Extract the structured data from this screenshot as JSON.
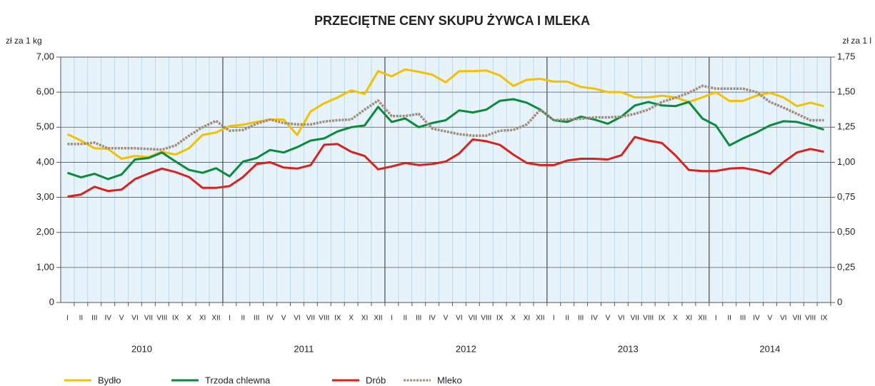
{
  "chart_data": {
    "type": "line",
    "title": "PRZECIĘTNE  CENY  SKUPU  ŻYWCA  I  MLEKA",
    "y_label": "zł za 1 kg",
    "y2_label": "zł za 1 l",
    "categories": [
      "I",
      "II",
      "III",
      "IV",
      "V",
      "VI",
      "VII",
      "VIII",
      "IX",
      "X",
      "XI",
      "XII",
      "I",
      "II",
      "III",
      "IV",
      "V",
      "VI",
      "VII",
      "VIII",
      "IX",
      "X",
      "XI",
      "XII",
      "I",
      "II",
      "III",
      "IV",
      "V",
      "VI",
      "VII",
      "VIII",
      "IX",
      "X",
      "XI",
      "XII",
      "I",
      "II",
      "III",
      "IV",
      "V",
      "VI",
      "VII",
      "VIII",
      "IX",
      "X",
      "XI",
      "XII",
      "I",
      "II",
      "III",
      "IV",
      "V",
      "VI",
      "VII",
      "VIII",
      "IX"
    ],
    "years": [
      "2010",
      "2011",
      "2012",
      "2013",
      "2014"
    ],
    "ylim": [
      0,
      7
    ],
    "yticks": [
      {
        "value": 0,
        "label": "0"
      },
      {
        "value": 1,
        "label": "1,00"
      },
      {
        "value": 2,
        "label": "2,00"
      },
      {
        "value": 3,
        "label": "3,00"
      },
      {
        "value": 4,
        "label": "4,00"
      },
      {
        "value": 5,
        "label": "5,00"
      },
      {
        "value": 6,
        "label": "6,00"
      },
      {
        "value": 7,
        "label": "7,00"
      }
    ],
    "y2lim": [
      0,
      1.75
    ],
    "y2ticks": [
      0,
      {
        "value": 0.25,
        "label": "0,25"
      },
      {
        "value": 0.5,
        "label": "0,50"
      },
      {
        "value": 0.75,
        "label": "0,75"
      },
      {
        "value": 1,
        "label": "1,00"
      },
      {
        "value": 1.25,
        "label": "1,25"
      },
      {
        "value": 1.5,
        "label": "1,50"
      },
      {
        "value": 1.75,
        "label": "1,75"
      }
    ],
    "grid": true,
    "series": [
      {
        "name": "Bydło",
        "color": "#f5c000",
        "values": [
          4.8,
          4.62,
          4.4,
          4.38,
          4.1,
          4.18,
          4.15,
          4.3,
          4.22,
          4.4,
          4.78,
          4.85,
          5.03,
          5.07,
          5.15,
          5.22,
          5.22,
          4.78,
          5.45,
          5.68,
          5.85,
          6.05,
          5.95,
          6.6,
          6.45,
          6.65,
          6.58,
          6.5,
          6.28,
          6.6,
          6.6,
          6.62,
          6.48,
          6.18,
          6.35,
          6.38,
          6.3,
          6.3,
          6.15,
          6.1,
          6.0,
          6.0,
          5.85,
          5.85,
          5.9,
          5.85,
          5.72,
          5.85,
          6.0,
          5.75,
          5.75,
          5.9,
          5.98,
          5.85,
          5.6,
          5.7,
          5.6
        ]
      },
      {
        "name": "Trzoda chlewna",
        "color": "#0a8a3a",
        "values": [
          3.7,
          3.57,
          3.67,
          3.52,
          3.65,
          4.08,
          4.12,
          4.28,
          4.02,
          3.78,
          3.7,
          3.83,
          3.6,
          4.02,
          4.12,
          4.35,
          4.28,
          4.43,
          4.62,
          4.68,
          4.88,
          5.0,
          5.05,
          5.58,
          5.15,
          5.25,
          5.0,
          5.12,
          5.2,
          5.48,
          5.42,
          5.5,
          5.75,
          5.8,
          5.7,
          5.5,
          5.2,
          5.15,
          5.3,
          5.22,
          5.1,
          5.3,
          5.62,
          5.72,
          5.62,
          5.6,
          5.72,
          5.25,
          5.05,
          4.48,
          4.68,
          4.85,
          5.05,
          5.17,
          5.15,
          5.05,
          4.93
        ]
      },
      {
        "name": "Drób",
        "color": "#d9221e",
        "values": [
          3.02,
          3.08,
          3.3,
          3.18,
          3.22,
          3.52,
          3.68,
          3.82,
          3.72,
          3.58,
          3.27,
          3.27,
          3.32,
          3.58,
          3.95,
          4.0,
          3.85,
          3.82,
          3.92,
          4.5,
          4.52,
          4.3,
          4.18,
          3.8,
          3.88,
          3.98,
          3.92,
          3.95,
          4.02,
          4.25,
          4.65,
          4.6,
          4.5,
          4.22,
          3.98,
          3.92,
          3.92,
          4.05,
          4.1,
          4.1,
          4.08,
          4.2,
          4.72,
          4.62,
          4.55,
          4.2,
          3.78,
          3.75,
          3.75,
          3.82,
          3.84,
          3.77,
          3.67,
          4.0,
          4.28,
          4.38,
          4.3
        ]
      },
      {
        "name": "Mleko",
        "color": "#a08c78",
        "style": "dashed",
        "axis": "y2",
        "values": [
          1.13,
          1.13,
          1.14,
          1.1,
          1.1,
          1.1,
          1.095,
          1.09,
          1.12,
          1.19,
          1.25,
          1.295,
          1.225,
          1.23,
          1.275,
          1.305,
          1.28,
          1.27,
          1.27,
          1.29,
          1.3,
          1.305,
          1.375,
          1.44,
          1.33,
          1.33,
          1.345,
          1.24,
          1.22,
          1.2,
          1.19,
          1.19,
          1.225,
          1.23,
          1.27,
          1.375,
          1.3,
          1.305,
          1.31,
          1.32,
          1.32,
          1.325,
          1.345,
          1.375,
          1.43,
          1.46,
          1.495,
          1.545,
          1.525,
          1.525,
          1.525,
          1.5,
          1.43,
          1.39,
          1.345,
          1.3,
          1.3
        ]
      }
    ]
  }
}
